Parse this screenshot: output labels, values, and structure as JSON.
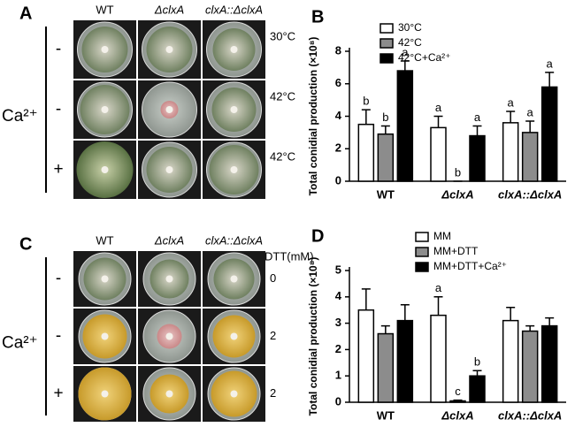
{
  "figure_panels": [
    {
      "label": "A",
      "columns": [
        "WT",
        "ΔclxA",
        "clxA::ΔclxA"
      ],
      "row_group": "Ca²⁺",
      "signs": [
        "-",
        "-",
        "+"
      ],
      "conditions": [
        "30°C",
        "42°C",
        "42°C"
      ]
    },
    {
      "label": "C",
      "columns": [
        "WT",
        "ΔclxA",
        "clxA::ΔclxA"
      ],
      "row_group": "Ca²⁺",
      "signs": [
        "-",
        "-",
        "+"
      ],
      "condition_header": "DTT(mM)",
      "conditions": [
        "0",
        "2",
        "2"
      ]
    }
  ],
  "chart_data": [
    {
      "type": "bar",
      "panel_label": "B",
      "ylabel": "Total conidial production (×10⁸)",
      "categories": [
        "WT",
        "ΔclxA",
        "clxA::ΔclxA"
      ],
      "ylim": [
        0,
        8
      ],
      "yticks": [
        0,
        2,
        4,
        6,
        8
      ],
      "legend": "upper left",
      "series": [
        {
          "name": "30°C",
          "color": "#ffffff",
          "values": [
            3.5,
            3.3,
            3.6
          ],
          "errors": [
            0.9,
            0.7,
            0.7
          ],
          "letters": [
            "b",
            "a",
            "a"
          ]
        },
        {
          "name": "42°C",
          "color": "#8c8c8c",
          "values": [
            2.9,
            0,
            3.0
          ],
          "errors": [
            0.5,
            0,
            0.7
          ],
          "letters": [
            "b",
            "b",
            "a"
          ]
        },
        {
          "name": "42°C+Ca²⁺",
          "color": "#000000",
          "values": [
            6.8,
            2.8,
            5.8
          ],
          "errors": [
            0.6,
            0.6,
            0.9
          ],
          "letters": [
            "a",
            "a",
            "a"
          ]
        }
      ]
    },
    {
      "type": "bar",
      "panel_label": "D",
      "ylabel": "Total conidial production (×10⁸)",
      "categories": [
        "WT",
        "ΔclxA",
        "clxA::ΔclxA"
      ],
      "ylim": [
        0,
        5
      ],
      "yticks": [
        0,
        1,
        2,
        3,
        4,
        5
      ],
      "legend": "upper center",
      "series": [
        {
          "name": "MM",
          "color": "#ffffff",
          "values": [
            3.5,
            3.3,
            3.1
          ],
          "errors": [
            0.8,
            0.7,
            0.5
          ],
          "letters": [
            null,
            "a",
            null
          ]
        },
        {
          "name": "MM+DTT",
          "color": "#8c8c8c",
          "values": [
            2.6,
            0.05,
            2.7
          ],
          "errors": [
            0.3,
            0.03,
            0.2
          ],
          "letters": [
            null,
            "c",
            null
          ]
        },
        {
          "name": "MM+DTT+Ca²⁺",
          "color": "#000000",
          "values": [
            3.1,
            1.0,
            2.9
          ],
          "errors": [
            0.6,
            0.2,
            0.3
          ],
          "letters": [
            null,
            "b",
            null
          ]
        }
      ]
    }
  ]
}
